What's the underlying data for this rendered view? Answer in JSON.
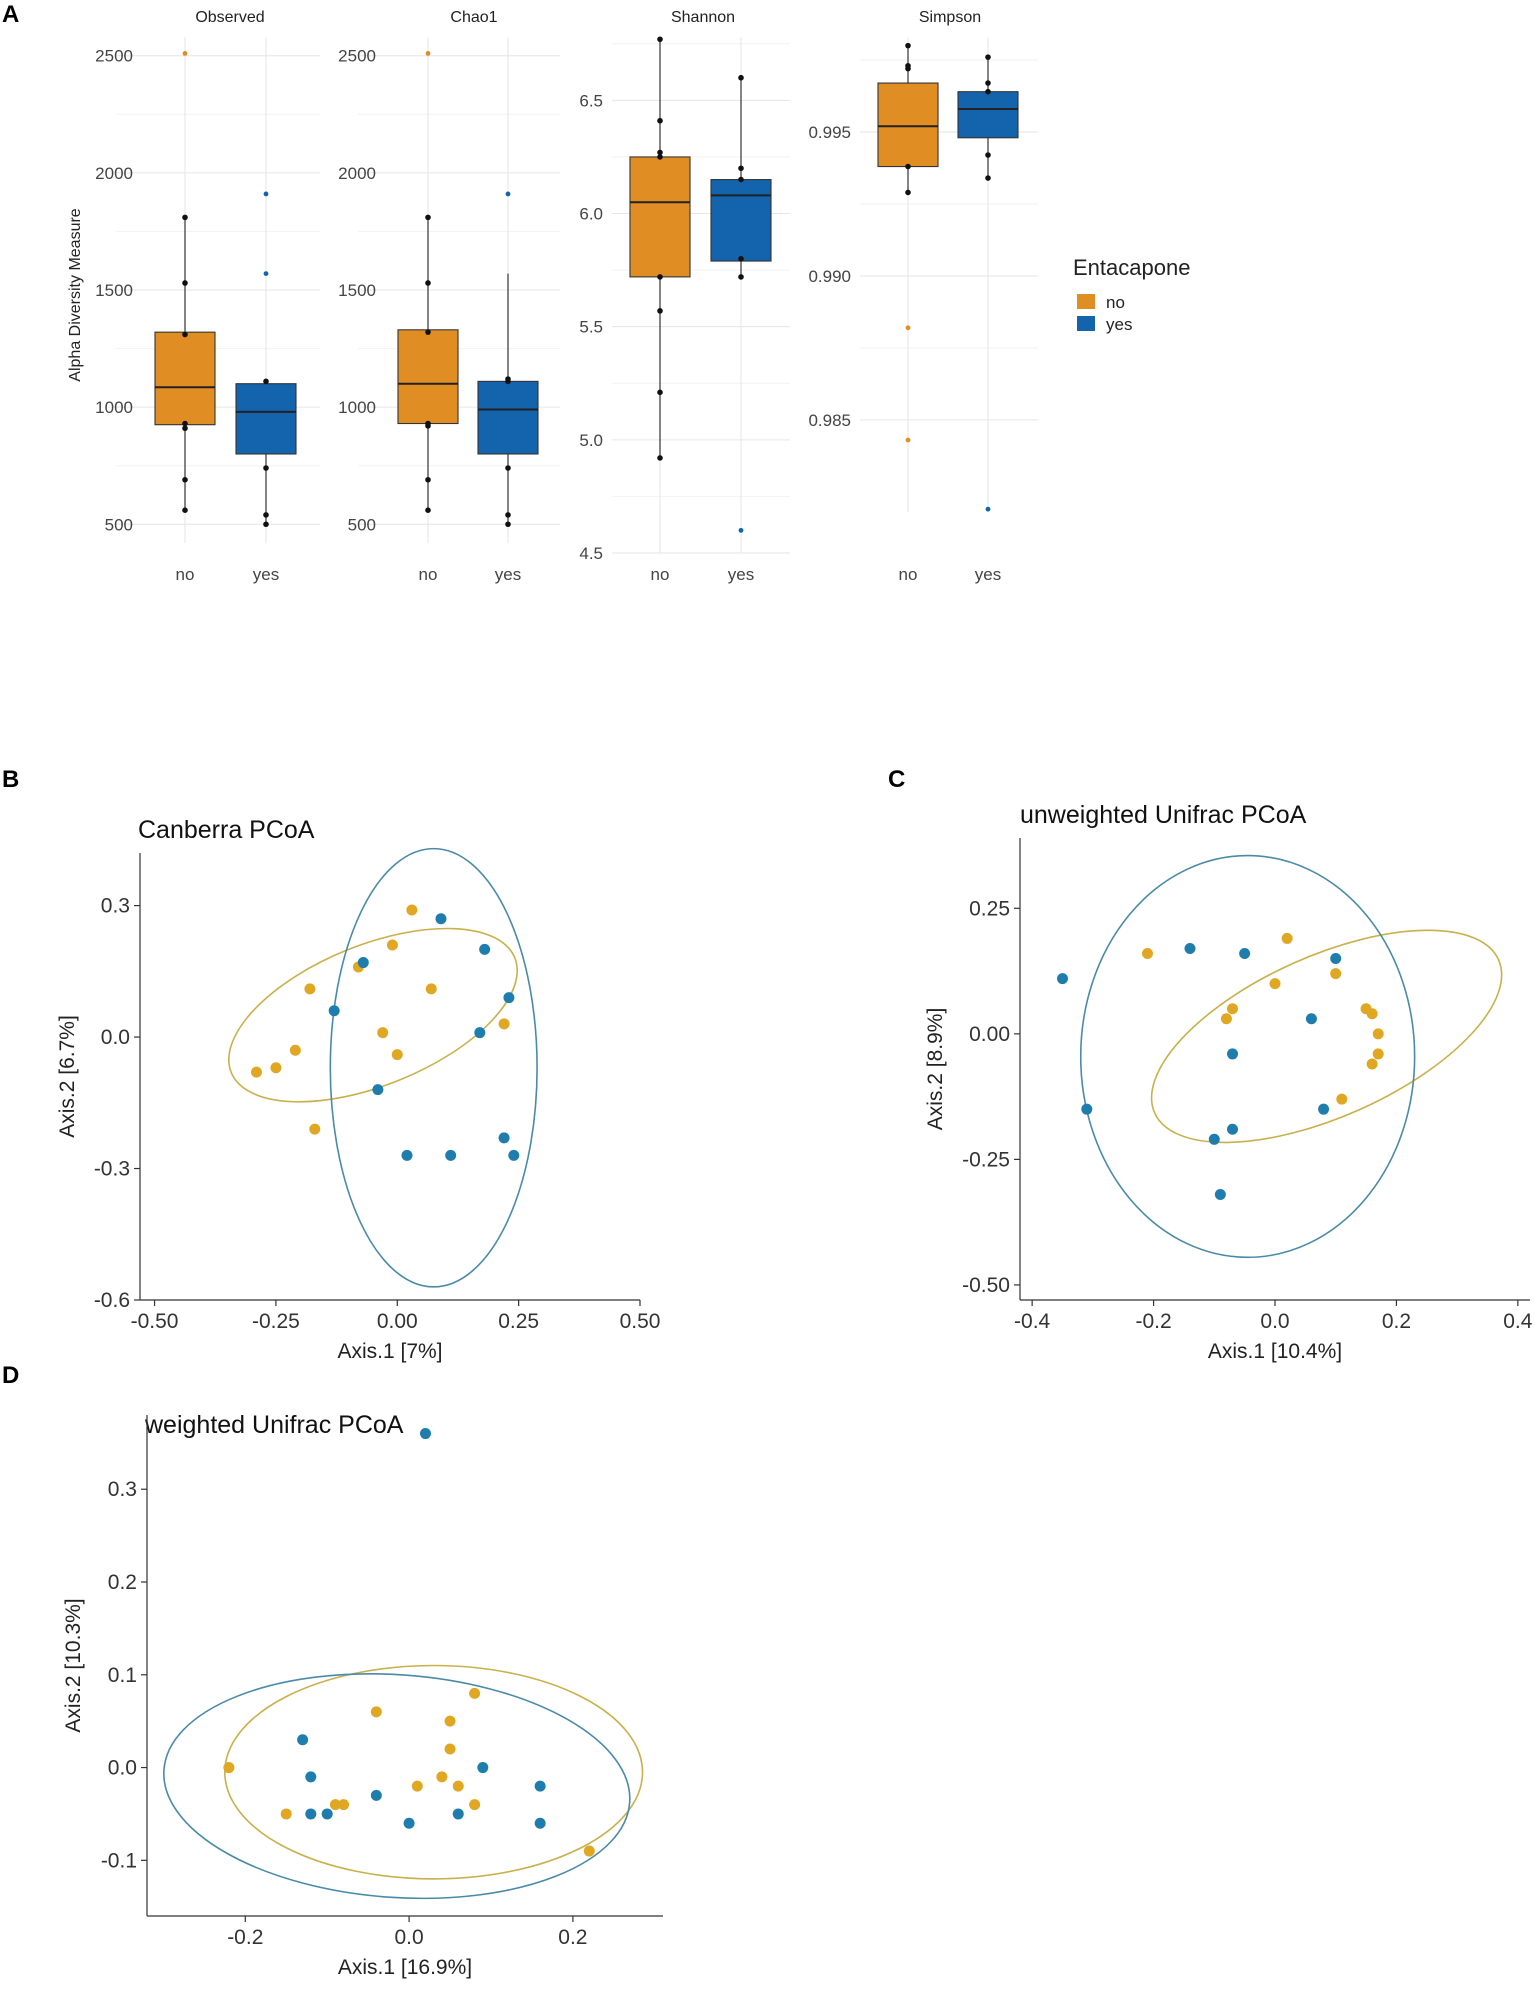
{
  "panel_labels": {
    "a": "A",
    "b": "B",
    "c": "C",
    "d": "D"
  },
  "colors": {
    "no": "#E08E24",
    "yes": "#1363AD",
    "no_pcoa": "#E0A722",
    "yes_pcoa": "#1F7DAE"
  },
  "chart_data": [
    {
      "type": "box",
      "panel": "A",
      "ylabel": "Alpha Diversity Measure",
      "categories": [
        "no",
        "yes"
      ],
      "legend": {
        "title": "Entacapone",
        "entries": [
          "no",
          "yes"
        ],
        "position": "right"
      },
      "facets": [
        {
          "title": "Observed",
          "ylim": [
            420,
            2580
          ],
          "yticks": [
            500,
            1000,
            1500,
            2000,
            2500
          ],
          "tick_labels": [
            "500",
            "1000",
            "1500",
            "2000",
            "2500"
          ],
          "boxes": [
            {
              "group": "no",
              "min": 560,
              "q1": 925,
              "median": 1085,
              "q3": 1320,
              "max": 1810,
              "outliers": [
                2510
              ],
              "points": [
                560,
                690,
                910,
                930,
                1310,
                1530,
                1810
              ]
            },
            {
              "group": "yes",
              "min": 500,
              "q1": 800,
              "median": 980,
              "q3": 1100,
              "max": 1110,
              "outliers": [
                1570,
                1910
              ],
              "points": [
                500,
                540,
                740,
                1110
              ]
            }
          ]
        },
        {
          "title": "Chao1",
          "ylim": [
            420,
            2580
          ],
          "yticks": [
            500,
            1000,
            1500,
            2000,
            2500
          ],
          "tick_labels": [
            "500",
            "1000",
            "1500",
            "2000",
            "2500"
          ],
          "boxes": [
            {
              "group": "no",
              "min": 560,
              "q1": 930,
              "median": 1100,
              "q3": 1330,
              "max": 1810,
              "outliers": [
                2510
              ],
              "points": [
                560,
                690,
                920,
                930,
                1320,
                1530,
                1810
              ]
            },
            {
              "group": "yes",
              "min": 500,
              "q1": 800,
              "median": 990,
              "q3": 1110,
              "max": 1570,
              "outliers": [
                1910
              ],
              "points": [
                500,
                540,
                740,
                1110,
                1120
              ]
            }
          ]
        },
        {
          "title": "Shannon",
          "ylim": [
            4.5,
            6.78
          ],
          "yticks": [
            4.5,
            5.0,
            5.5,
            6.0,
            6.5
          ],
          "tick_labels": [
            "4.5",
            "5.0",
            "5.5",
            "6.0",
            "6.5"
          ],
          "boxes": [
            {
              "group": "no",
              "min": 4.92,
              "q1": 5.72,
              "median": 6.05,
              "q3": 6.25,
              "max": 6.77,
              "outliers": [],
              "points": [
                4.92,
                5.21,
                5.57,
                5.72,
                6.25,
                6.27,
                6.41,
                6.77
              ]
            },
            {
              "group": "yes",
              "min": 5.72,
              "q1": 5.79,
              "median": 6.08,
              "q3": 6.15,
              "max": 6.6,
              "outliers": [
                4.6
              ],
              "points": [
                5.72,
                5.8,
                6.15,
                6.2,
                6.6
              ]
            }
          ]
        },
        {
          "title": "Simpson",
          "ylim": [
            0.9818,
            0.9983
          ],
          "yticks": [
            0.985,
            0.99,
            0.995
          ],
          "tick_labels": [
            "0.985",
            "0.990",
            "0.995"
          ],
          "boxes": [
            {
              "group": "no",
              "min": 0.9929,
              "q1": 0.9938,
              "median": 0.9952,
              "q3": 0.9967,
              "max": 0.998,
              "outliers": [
                0.9882,
                0.9843
              ],
              "points": [
                0.9929,
                0.9938,
                0.9972,
                0.9973,
                0.998
              ]
            },
            {
              "group": "yes",
              "min": 0.9934,
              "q1": 0.9948,
              "median": 0.9958,
              "q3": 0.9964,
              "max": 0.9976,
              "outliers": [
                0.9819
              ],
              "points": [
                0.9934,
                0.9942,
                0.9964,
                0.9967,
                0.9976
              ]
            }
          ]
        }
      ]
    },
    {
      "type": "scatter",
      "panel": "B",
      "title": "Canberra PCoA",
      "xlabel": "Axis.1   [7%]",
      "ylabel": "Axis.2   [6.7%]",
      "xlim": [
        -0.53,
        0.5
      ],
      "ylim": [
        -0.6,
        0.42
      ],
      "xticks": [
        -0.5,
        -0.25,
        0,
        0.25,
        0.5
      ],
      "xtick_labels": [
        "-0.50",
        "-0.25",
        "0.00",
        "0.25",
        "0.50"
      ],
      "yticks": [
        -0.6,
        -0.3,
        0,
        0.3
      ],
      "ytick_labels": [
        "-0.6",
        "-0.3",
        "0.0",
        "0.3"
      ],
      "series": [
        {
          "name": "no",
          "points": [
            [
              -0.29,
              -0.08
            ],
            [
              -0.25,
              -0.07
            ],
            [
              -0.21,
              -0.03
            ],
            [
              -0.18,
              0.11
            ],
            [
              -0.17,
              -0.21
            ],
            [
              -0.08,
              0.16
            ],
            [
              -0.03,
              0.01
            ],
            [
              -0.01,
              0.21
            ],
            [
              0.0,
              -0.04
            ],
            [
              0.03,
              0.29
            ],
            [
              0.07,
              0.11
            ],
            [
              0.22,
              0.03
            ]
          ],
          "ellipse": {
            "cx": -0.05,
            "cy": 0.05,
            "rx": 0.315,
            "ry": 0.16,
            "angle_deg": 22
          }
        },
        {
          "name": "yes",
          "points": [
            [
              -0.07,
              0.17
            ],
            [
              -0.13,
              0.06
            ],
            [
              -0.04,
              -0.12
            ],
            [
              0.02,
              -0.27
            ],
            [
              0.09,
              0.27
            ],
            [
              0.11,
              -0.27
            ],
            [
              0.17,
              0.01
            ],
            [
              0.18,
              0.2
            ],
            [
              0.23,
              0.09
            ],
            [
              0.22,
              -0.23
            ],
            [
              0.24,
              -0.27
            ]
          ],
          "ellipse": {
            "cx": 0.075,
            "cy": -0.07,
            "rx": 0.213,
            "ry": 0.5,
            "angle_deg": 0
          }
        }
      ]
    },
    {
      "type": "scatter",
      "panel": "C",
      "title": "unweighted Unifrac PCoA",
      "xlabel": "Axis.1   [10.4%]",
      "ylabel": "Axis.2   [8.9%]",
      "xlim": [
        -0.42,
        0.42
      ],
      "ylim": [
        -0.53,
        0.39
      ],
      "xticks": [
        -0.4,
        -0.2,
        0,
        0.2,
        0.4
      ],
      "xtick_labels": [
        "-0.4",
        "-0.2",
        "0.0",
        "0.2",
        "0.4"
      ],
      "yticks": [
        -0.5,
        -0.25,
        0,
        0.25
      ],
      "ytick_labels": [
        "-0.50",
        "-0.25",
        "0.00",
        "0.25"
      ],
      "series": [
        {
          "name": "no",
          "points": [
            [
              -0.21,
              0.16
            ],
            [
              -0.08,
              0.03
            ],
            [
              -0.07,
              0.05
            ],
            [
              0.0,
              0.1
            ],
            [
              0.02,
              0.19
            ],
            [
              0.1,
              0.12
            ],
            [
              0.11,
              -0.13
            ],
            [
              0.15,
              0.05
            ],
            [
              0.16,
              0.04
            ],
            [
              0.17,
              0.0
            ],
            [
              0.17,
              -0.04
            ],
            [
              0.16,
              -0.06
            ]
          ],
          "ellipse": {
            "cx": 0.085,
            "cy": -0.005,
            "rx": 0.31,
            "ry": 0.16,
            "angle_deg": 24
          }
        },
        {
          "name": "yes",
          "points": [
            [
              -0.35,
              0.11
            ],
            [
              -0.31,
              -0.15
            ],
            [
              -0.14,
              0.17
            ],
            [
              -0.05,
              0.16
            ],
            [
              0.1,
              0.15
            ],
            [
              0.06,
              0.03
            ],
            [
              -0.07,
              -0.04
            ],
            [
              -0.07,
              -0.19
            ],
            [
              -0.1,
              -0.21
            ],
            [
              -0.09,
              -0.32
            ],
            [
              0.08,
              -0.15
            ]
          ],
          "ellipse": {
            "cx": -0.045,
            "cy": -0.045,
            "rx": 0.275,
            "ry": 0.4,
            "angle_deg": 0
          }
        }
      ]
    },
    {
      "type": "scatter",
      "panel": "D",
      "title": "weighted Unifrac PCoA",
      "xlabel": "Axis.1   [16.9%]",
      "ylabel": "Axis.2   [10.3%]",
      "xlim": [
        -0.32,
        0.31
      ],
      "ylim": [
        -0.16,
        0.38
      ],
      "xticks": [
        -0.2,
        0,
        0.2
      ],
      "xtick_labels": [
        "-0.2",
        "0.0",
        "0.2"
      ],
      "yticks": [
        -0.1,
        0,
        0.1,
        0.2,
        0.3
      ],
      "ytick_labels": [
        "-0.1",
        "0.0",
        "0.1",
        "0.2",
        "0.3"
      ],
      "series": [
        {
          "name": "no",
          "points": [
            [
              -0.22,
              0.0
            ],
            [
              -0.15,
              -0.05
            ],
            [
              -0.09,
              -0.04
            ],
            [
              -0.08,
              -0.04
            ],
            [
              -0.04,
              0.06
            ],
            [
              0.01,
              -0.02
            ],
            [
              0.04,
              -0.01
            ],
            [
              0.05,
              0.02
            ],
            [
              0.05,
              0.05
            ],
            [
              0.06,
              -0.02
            ],
            [
              0.08,
              -0.04
            ],
            [
              0.08,
              0.08
            ],
            [
              0.22,
              -0.09
            ]
          ],
          "ellipse": {
            "cx": 0.03,
            "cy": -0.005,
            "rx": 0.255,
            "ry": 0.115,
            "angle_deg": 0
          }
        },
        {
          "name": "yes",
          "points": [
            [
              -0.13,
              0.03
            ],
            [
              -0.12,
              -0.01
            ],
            [
              -0.12,
              -0.05
            ],
            [
              -0.1,
              -0.05
            ],
            [
              -0.04,
              -0.03
            ],
            [
              0.0,
              -0.06
            ],
            [
              0.06,
              -0.05
            ],
            [
              0.09,
              0.0
            ],
            [
              0.16,
              -0.02
            ],
            [
              0.16,
              -0.06
            ],
            [
              0.02,
              0.36
            ]
          ],
          "ellipse": {
            "cx": -0.015,
            "cy": -0.02,
            "rx": 0.285,
            "ry": 0.12,
            "angle_deg": -4
          }
        }
      ]
    }
  ]
}
